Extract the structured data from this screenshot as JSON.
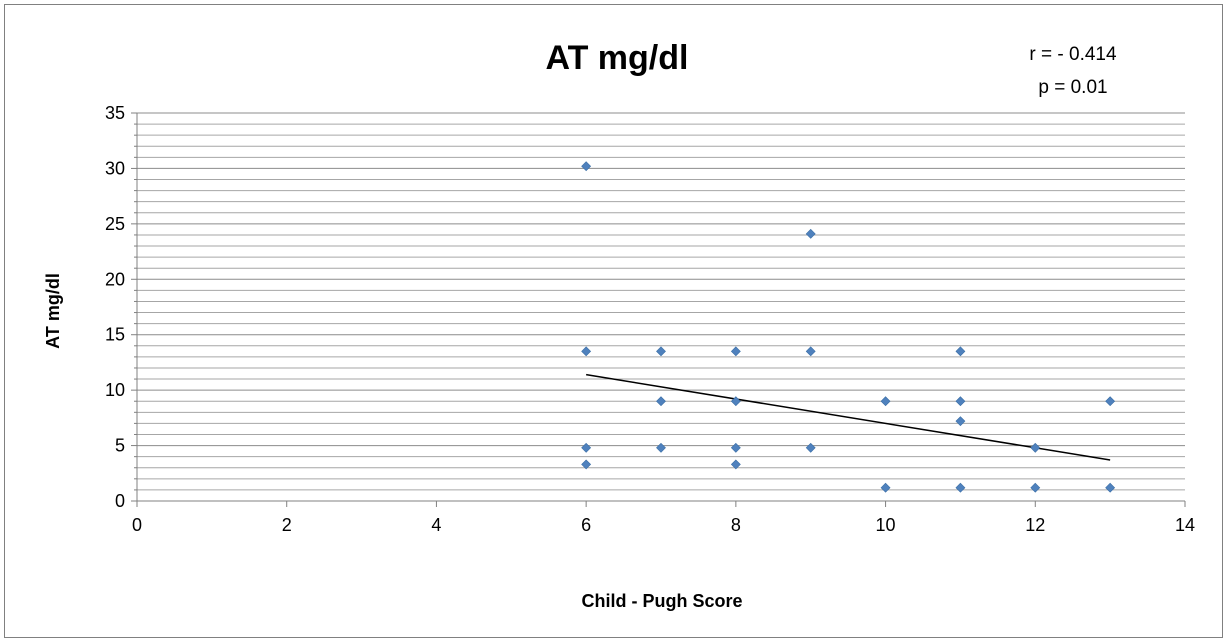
{
  "chart_data": {
    "type": "scatter",
    "title": "AT mg/dl",
    "annotations": [
      "r = - 0.414",
      "p = 0.01"
    ],
    "xlabel": "Child - Pugh Score",
    "ylabel": "AT mg/dl",
    "xlim": [
      0,
      14
    ],
    "ylim": [
      0,
      35
    ],
    "x_ticks": [
      "0",
      "2",
      "4",
      "6",
      "8",
      "10",
      "12",
      "14"
    ],
    "y_ticks": [
      "0",
      "5",
      "10",
      "15",
      "20",
      "25",
      "30",
      "35"
    ],
    "grid": "horizontal major and minor gridlines",
    "legend": "none",
    "marker_color": "#4f81bd",
    "trendline_color": "#000000",
    "series": [
      {
        "x": [
          6,
          6,
          6,
          6,
          7,
          7,
          7,
          8,
          8,
          8,
          8,
          9,
          9,
          9,
          10,
          10,
          11,
          11,
          11,
          11,
          12,
          12,
          13,
          13
        ],
        "y": [
          30.2,
          13.5,
          4.8,
          3.3,
          13.5,
          9.0,
          4.8,
          13.5,
          9.0,
          4.8,
          3.3,
          24.1,
          13.5,
          4.8,
          9.0,
          1.2,
          13.5,
          9.0,
          7.2,
          1.2,
          4.8,
          1.2,
          9.0,
          1.2
        ]
      }
    ],
    "trendline": {
      "x": [
        6,
        13
      ],
      "y": [
        11.4,
        3.7
      ]
    }
  }
}
